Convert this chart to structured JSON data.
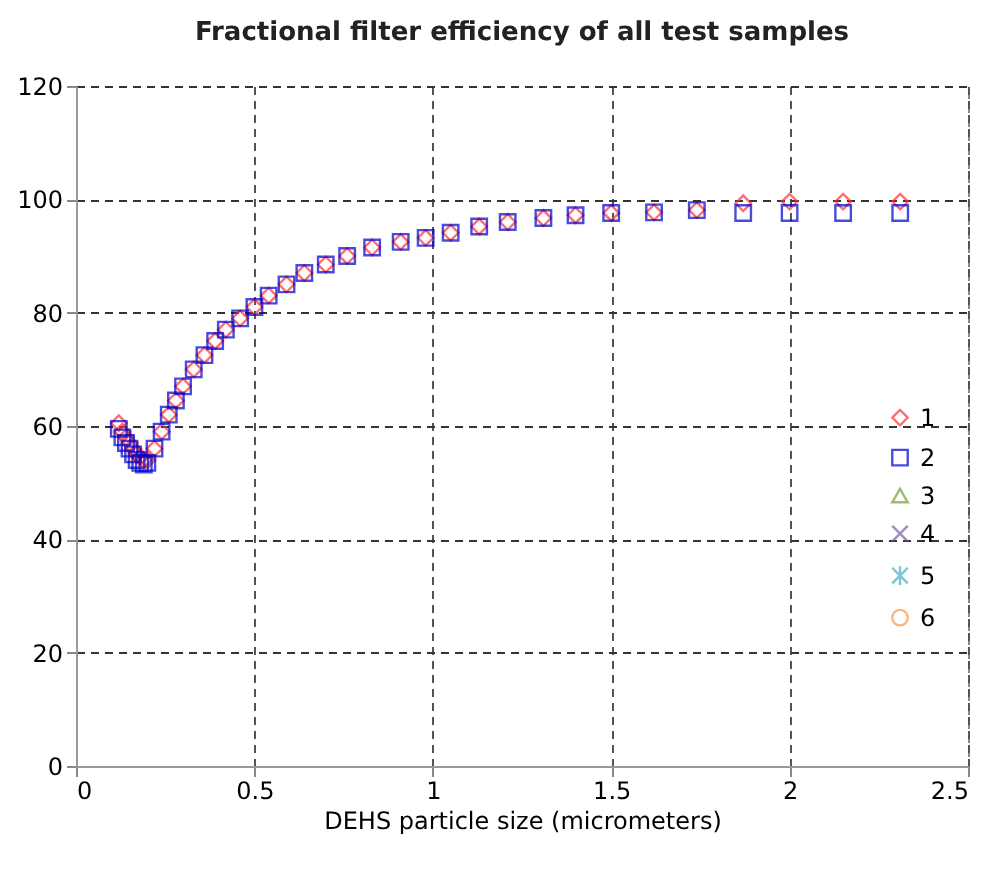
{
  "chart_data": {
    "type": "scatter",
    "title": "Fractional filter efficiency of all test samples",
    "xlabel": "DEHS particle size (micrometers)",
    "x": [
      0.12,
      0.13,
      0.14,
      0.15,
      0.16,
      0.17,
      0.18,
      0.19,
      0.2,
      0.22,
      0.24,
      0.26,
      0.28,
      0.3,
      0.33,
      0.36,
      0.39,
      0.42,
      0.46,
      0.5,
      0.54,
      0.59,
      0.64,
      0.7,
      0.76,
      0.83,
      0.91,
      0.98,
      1.05,
      1.13,
      1.21,
      1.31,
      1.4,
      1.5,
      1.62,
      1.74,
      1.87,
      2.0,
      2.15,
      2.31
    ],
    "series": [
      {
        "name": "1",
        "color": "#ff3333",
        "marker": "diamond",
        "values": [
          60.5,
          59,
          58,
          57,
          56,
          55,
          54.5,
          54,
          54,
          56,
          59,
          62,
          64.5,
          67,
          70,
          72.5,
          75,
          77,
          79,
          81,
          83,
          85,
          87,
          88.5,
          90,
          91.5,
          92.5,
          93.2,
          94.1,
          95.2,
          96,
          96.7,
          97.2,
          97.6,
          97.7,
          98.1,
          99.3,
          99.6,
          99.6,
          99.6
        ]
      },
      {
        "name": "2",
        "color": "#0000cc",
        "marker": "square",
        "values": [
          59.5,
          58,
          57,
          56,
          55,
          54,
          53.5,
          53.2,
          53.5,
          56,
          59,
          62,
          64.5,
          67,
          70,
          72.5,
          75,
          77,
          79,
          81,
          83,
          85,
          87,
          88.5,
          90,
          91.5,
          92.5,
          93.2,
          94.1,
          95.2,
          96,
          96.7,
          97.2,
          97.6,
          97.7,
          98.1,
          97.6,
          97.6,
          97.6,
          97.6
        ]
      },
      {
        "name": "3",
        "color": "#77a03c",
        "marker": "triangle",
        "values": [
          null,
          null,
          null,
          null,
          null,
          null,
          null,
          null,
          null,
          null,
          null,
          null,
          null,
          null,
          null,
          null,
          null,
          null,
          null,
          null,
          null,
          null,
          null,
          null,
          null,
          null,
          null,
          null,
          null,
          null,
          null,
          null,
          null,
          null,
          null,
          null,
          null,
          null,
          null,
          null
        ]
      },
      {
        "name": "4",
        "color": "#7b5fa0",
        "marker": "cross",
        "values": [
          null,
          null,
          null,
          null,
          null,
          null,
          null,
          null,
          null,
          null,
          null,
          null,
          null,
          null,
          null,
          null,
          null,
          null,
          null,
          null,
          null,
          null,
          null,
          null,
          null,
          null,
          null,
          null,
          null,
          null,
          null,
          null,
          null,
          null,
          null,
          null,
          null,
          null,
          null,
          null
        ]
      },
      {
        "name": "5",
        "color": "#4bacc6",
        "marker": "star",
        "values": [
          null,
          null,
          null,
          null,
          null,
          null,
          null,
          null,
          null,
          null,
          null,
          null,
          null,
          null,
          null,
          null,
          null,
          null,
          null,
          null,
          null,
          null,
          null,
          null,
          null,
          null,
          null,
          null,
          null,
          null,
          null,
          null,
          null,
          null,
          null,
          null,
          null,
          null,
          null,
          null
        ]
      },
      {
        "name": "6",
        "color": "#f79646",
        "marker": "circle",
        "values": [
          null,
          null,
          null,
          null,
          null,
          null,
          null,
          null,
          null,
          null,
          null,
          null,
          null,
          null,
          null,
          null,
          null,
          null,
          null,
          null,
          null,
          null,
          null,
          null,
          null,
          null,
          null,
          null,
          null,
          null,
          null,
          null,
          null,
          null,
          null,
          null,
          null,
          null,
          null,
          null
        ]
      }
    ],
    "xlim": [
      0,
      2.5
    ],
    "xticks": [
      0,
      0.5,
      1,
      1.5,
      2,
      2.5
    ],
    "ylim": [
      0,
      120
    ],
    "yticks": [
      0,
      20,
      40,
      60,
      80,
      100,
      120
    ],
    "grid": true,
    "legend": "right"
  }
}
